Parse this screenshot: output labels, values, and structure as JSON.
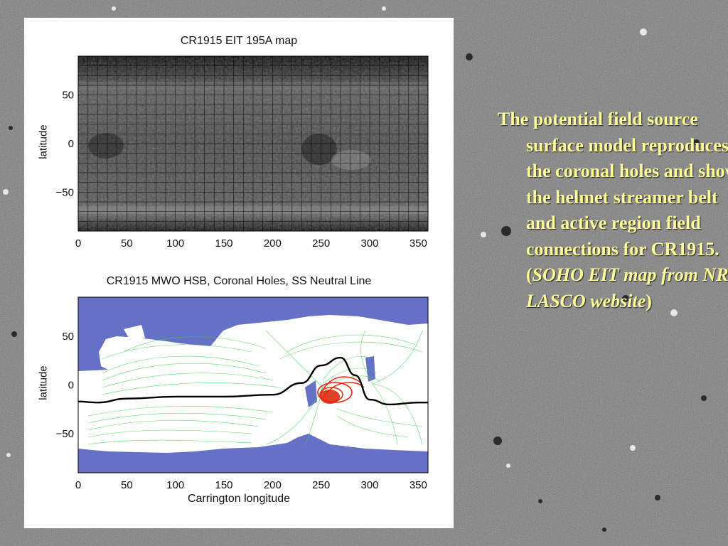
{
  "caption": {
    "text": "The potential field source surface model reproduces the coronal holes and shows the helmet streamer belt and active region field connections for CR1915. (",
    "italic": "SOHO EIT map from NRL LASCO website",
    "close": ")"
  },
  "panels": {
    "top": {
      "title": "CR1915 EIT 195A map",
      "ylabel": "latitude",
      "xticks": [
        "0",
        "50",
        "100",
        "150",
        "200",
        "250",
        "300",
        "350"
      ],
      "yticks": [
        "50",
        "0",
        "−50"
      ]
    },
    "bottom": {
      "title": "CR1915 MWO HSB, Coronal Holes, SS Neutral Line",
      "ylabel": "latitude",
      "xlabel": "Carrington longitude",
      "xticks": [
        "0",
        "50",
        "100",
        "150",
        "200",
        "250",
        "300",
        "350"
      ],
      "yticks": [
        "50",
        "0",
        "−50"
      ]
    }
  },
  "colors": {
    "caption": "#ffff99",
    "coronal_hole": "#5560c0",
    "field_lines": "#3bd44a",
    "active_region": "#e02a10",
    "neutral_line": "#000000"
  },
  "chart_data": {
    "type": "line",
    "x": [
      0,
      20,
      50,
      100,
      150,
      200,
      230,
      250,
      270,
      285,
      300,
      320,
      350,
      360
    ],
    "y": [
      -17,
      -18,
      -14,
      -12,
      -12,
      -10,
      2,
      20,
      28,
      10,
      -15,
      -20,
      -18,
      -18
    ],
    "xlim": [
      0,
      360
    ],
    "ylim": [
      -90,
      90
    ]
  }
}
